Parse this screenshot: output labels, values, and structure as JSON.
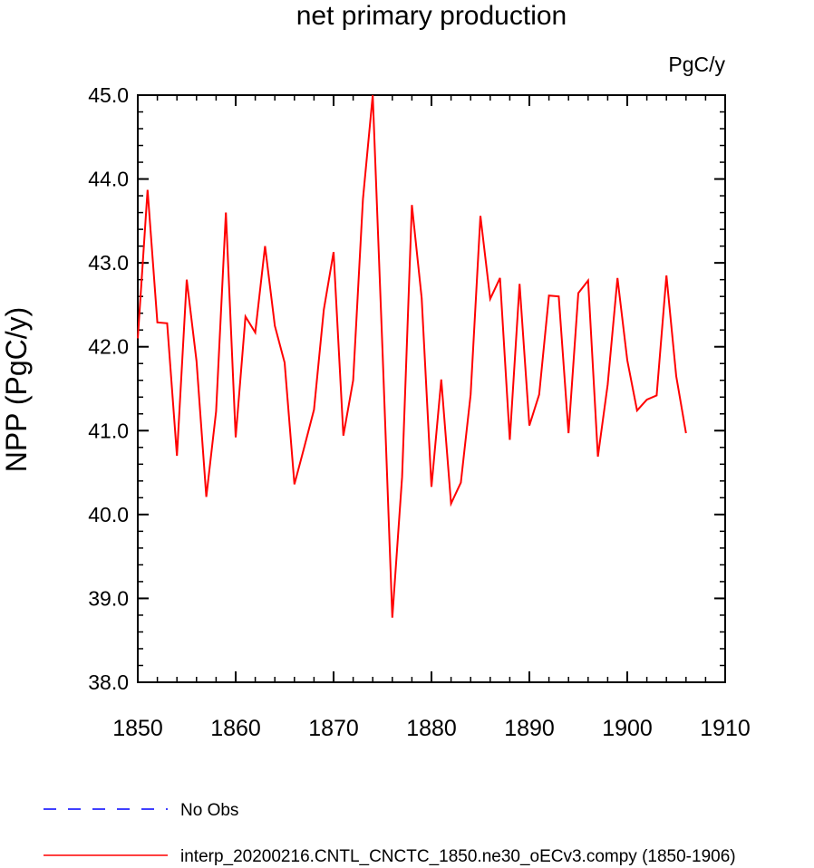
{
  "chart_data": {
    "type": "line",
    "title": "net primary production",
    "units": "PgC/y",
    "ylabel": "NPP  (PgC/y)",
    "xlabel": "",
    "xlim": [
      1850,
      1910
    ],
    "ylim": [
      38.0,
      45.0
    ],
    "x_ticks": [
      "1850",
      "1860",
      "1870",
      "1880",
      "1890",
      "1900",
      "1910"
    ],
    "y_ticks": [
      "38.0",
      "39.0",
      "40.0",
      "41.0",
      "42.0",
      "43.0",
      "44.0",
      "45.0"
    ],
    "grid": false,
    "legend_position": "bottom",
    "series": [
      {
        "name": "No Obs",
        "color": "#0000ff",
        "dash": "dashed",
        "x": [],
        "values": []
      },
      {
        "name": "interp_20200216.CNTL_CNCTC_1850.ne30_oECv3.compy (1850-1906)",
        "color": "#ff0000",
        "dash": "solid",
        "x": [
          1850,
          1851,
          1852,
          1853,
          1854,
          1855,
          1856,
          1857,
          1858,
          1859,
          1860,
          1861,
          1862,
          1863,
          1864,
          1865,
          1866,
          1867,
          1868,
          1869,
          1870,
          1871,
          1872,
          1873,
          1874,
          1875,
          1876,
          1877,
          1878,
          1879,
          1880,
          1881,
          1882,
          1883,
          1884,
          1885,
          1886,
          1887,
          1888,
          1889,
          1890,
          1891,
          1892,
          1893,
          1894,
          1895,
          1896,
          1897,
          1898,
          1899,
          1900,
          1901,
          1902,
          1903,
          1904,
          1905,
          1906
        ],
        "values": [
          42.1,
          43.87,
          42.29,
          42.28,
          40.7,
          42.8,
          41.83,
          40.21,
          41.23,
          43.6,
          40.92,
          42.36,
          42.17,
          43.2,
          42.25,
          41.81,
          40.36,
          40.8,
          41.25,
          42.44,
          43.13,
          40.94,
          41.6,
          43.76,
          45.0,
          41.95,
          38.77,
          40.45,
          43.69,
          42.58,
          40.33,
          41.61,
          40.13,
          40.38,
          41.43,
          43.56,
          42.57,
          42.82,
          40.89,
          42.75,
          41.06,
          41.43,
          42.61,
          42.6,
          40.97,
          42.64,
          42.79,
          40.69,
          41.55,
          42.82,
          41.84,
          41.24,
          41.37,
          41.42,
          42.85,
          41.65,
          40.97
        ]
      }
    ]
  }
}
